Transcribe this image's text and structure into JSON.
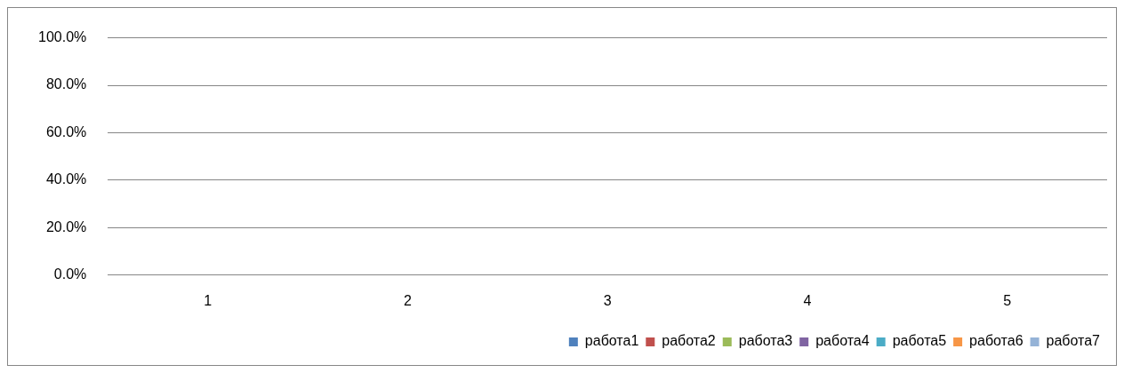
{
  "chart_data": {
    "type": "bar",
    "categories": [
      "1",
      "2",
      "3",
      "4",
      "5"
    ],
    "series": [
      {
        "name": "работа1",
        "color": "#4f81bd",
        "values": [
          0,
          0,
          0,
          0,
          0
        ]
      },
      {
        "name": "работа2",
        "color": "#c0504d",
        "values": [
          0,
          0,
          0,
          0,
          0
        ]
      },
      {
        "name": "работа3",
        "color": "#9bbb59",
        "values": [
          0,
          0,
          0,
          0,
          0
        ]
      },
      {
        "name": "работа4",
        "color": "#8064a2",
        "values": [
          0,
          0,
          0,
          0,
          0
        ]
      },
      {
        "name": "работа5",
        "color": "#4bacc6",
        "values": [
          0,
          0,
          0,
          0,
          0
        ]
      },
      {
        "name": "работа6",
        "color": "#f79646",
        "values": [
          0,
          0,
          0,
          0,
          0
        ]
      },
      {
        "name": "работа7",
        "color": "#95b3d7",
        "values": [
          0,
          0,
          0,
          0,
          0
        ]
      }
    ],
    "ylim": [
      0,
      100
    ],
    "yticks": [
      {
        "value": 0,
        "label": "0.0%"
      },
      {
        "value": 20,
        "label": "20.0%"
      },
      {
        "value": 40,
        "label": "40.0%"
      },
      {
        "value": 60,
        "label": "60.0%"
      },
      {
        "value": 80,
        "label": "80.0%"
      },
      {
        "value": 100,
        "label": "100.0%"
      }
    ],
    "grid": "y",
    "legend": "bottom"
  }
}
